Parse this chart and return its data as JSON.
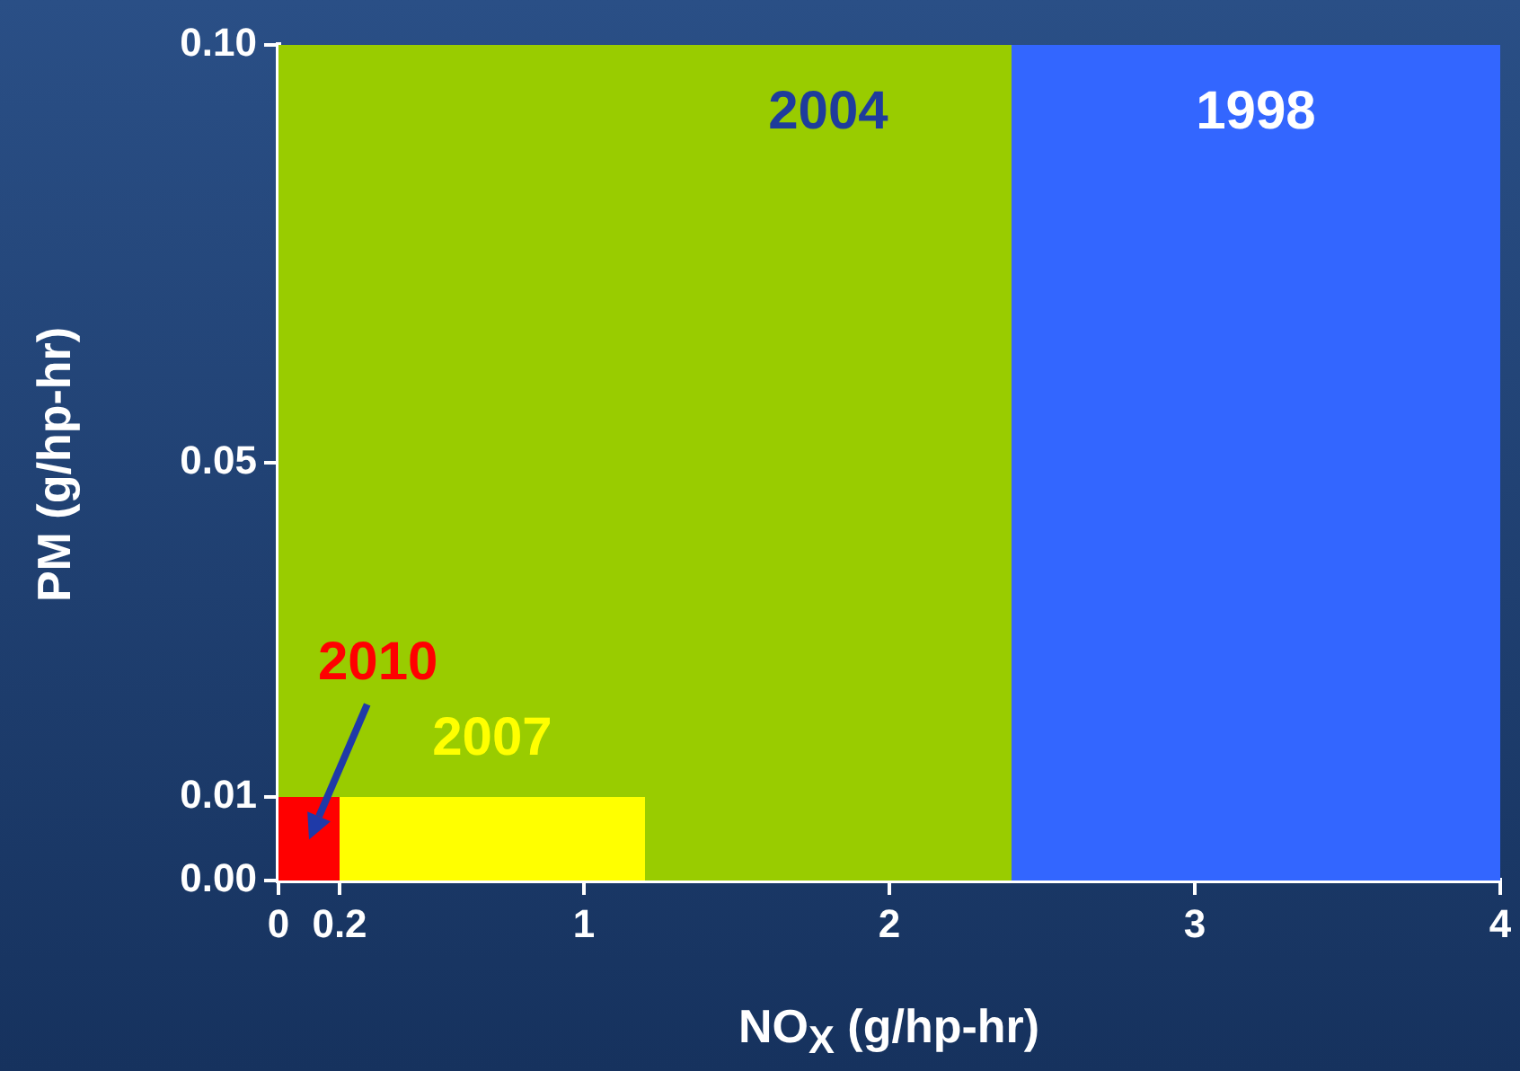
{
  "chart_data": {
    "type": "area",
    "xlabel": "NO$_{X}$ (g/hp-hr)",
    "ylabel": "PM (g/hp-hr)",
    "xlim": [
      0,
      4
    ],
    "xticks": [
      0,
      0.2,
      1,
      2,
      3,
      4
    ],
    "ylim": [
      0,
      0.1
    ],
    "yticks": [
      {
        "value": 0,
        "label": "0.00"
      },
      {
        "value": 0.01,
        "label": "0.01"
      },
      {
        "value": 0.05,
        "label": "0.05"
      },
      {
        "value": 0.1,
        "label": "0.10"
      }
    ],
    "grid": false,
    "legend": false,
    "series": [
      {
        "name": "1998",
        "color": "#3366ff",
        "x": [
          0,
          4
        ],
        "values": [
          0.1,
          0.1
        ]
      },
      {
        "name": "2004",
        "color": "#99cc00",
        "x": [
          0,
          2.4
        ],
        "values": [
          0.1,
          0.1
        ]
      },
      {
        "name": "2007",
        "color": "#ffff00",
        "x": [
          0,
          1.2
        ],
        "values": [
          0.01,
          0.01
        ]
      },
      {
        "name": "2010",
        "color": "#ff0000",
        "x": [
          0,
          0.2
        ],
        "values": [
          0.01,
          0.01
        ]
      }
    ]
  }
}
